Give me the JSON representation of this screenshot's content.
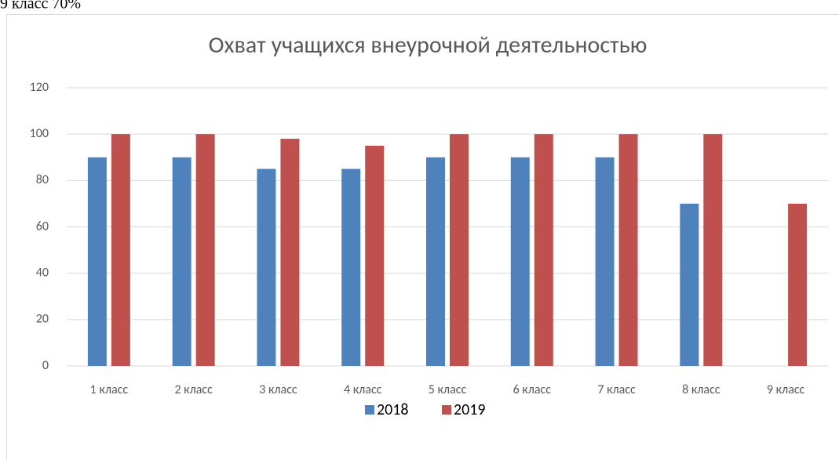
{
  "header_text": "9 класс 70%",
  "chart_data": {
    "type": "bar",
    "title": "Охват учащихся внеурочной деятельностью",
    "categories": [
      "1 класс",
      "2 класс",
      "3 класс",
      "4 класс",
      "5 класс",
      "6 класс",
      "7 класс",
      "8 класс",
      "9 класс"
    ],
    "series": [
      {
        "name": "2018",
        "color": "#4f81bd",
        "values": [
          90,
          90,
          85,
          85,
          90,
          90,
          90,
          70,
          null
        ]
      },
      {
        "name": "2019",
        "color": "#c0504d",
        "values": [
          100,
          100,
          98,
          95,
          100,
          100,
          100,
          100,
          70
        ]
      }
    ],
    "ylim": [
      0,
      120
    ],
    "yticks": [
      0,
      20,
      40,
      60,
      80,
      100,
      120
    ],
    "grid": true,
    "legend": "bottom"
  }
}
